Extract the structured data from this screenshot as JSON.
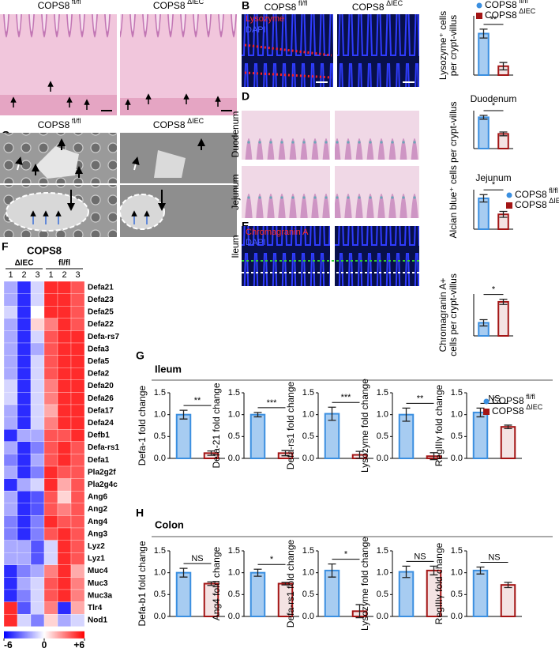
{
  "panel_labels": [
    "A",
    "B",
    "C",
    "D",
    "E",
    "F",
    "G",
    "H"
  ],
  "images": {
    "A": {
      "labels": [
        "COPS8 fl/fl",
        "COPS8 ΔIEC"
      ]
    },
    "B": {
      "labels": [
        "COPS8 fl/fl",
        "COPS8 ΔIEC"
      ],
      "stains": [
        "Lysozyme",
        "DAPI"
      ]
    },
    "C": {
      "labels": [
        "COPS8 fl/fl",
        "COPS8 ΔIEC"
      ]
    },
    "D": {
      "rows": [
        "Duodenum",
        "Jejunum"
      ]
    },
    "E": {
      "row": "Ileum",
      "stains": [
        "Chromagranin A",
        "DAPI"
      ]
    }
  },
  "sections": {
    "G": "Ileum",
    "H": "Colon"
  },
  "chart_data": [
    {
      "type": "bar",
      "y_label": [
        "Lysozyme⁺ cells",
        "per crypt-villus"
      ],
      "ylim": [
        0,
        8
      ],
      "significance": "**",
      "legend": "upper right",
      "series": [
        {
          "name": "COPS8 fl/fl",
          "color": "#3b8fe0",
          "values": [
            5.6
          ],
          "errors": [
            0.6
          ]
        },
        {
          "name": "COPS8 ΔIEC",
          "color": "#a31515",
          "values": [
            1.2
          ],
          "errors": [
            0.5
          ]
        }
      ]
    },
    {
      "type": "bar",
      "title": "Duodenum",
      "y_label": [
        "Alcian blue⁺ cells per crypt-villus"
      ],
      "ylim": [
        0,
        16
      ],
      "significance": "*",
      "series": [
        {
          "color": "#3b8fe0",
          "values": [
            13.2
          ],
          "errors": [
            0.8
          ]
        },
        {
          "color": "#a31515",
          "values": [
            6.2
          ],
          "errors": [
            0.8
          ]
        }
      ]
    },
    {
      "type": "bar",
      "title": "Jejunum",
      "ylim": [
        0,
        16
      ],
      "significance": "*",
      "legend": "upper right",
      "series": [
        {
          "name": "COPS8 fl/fl",
          "color": "#3b8fe0",
          "values": [
            12.5
          ],
          "errors": [
            1.5
          ]
        },
        {
          "name": "COPS8 ΔIEC",
          "color": "#a31515",
          "values": [
            6.0
          ],
          "errors": [
            1.2
          ]
        }
      ]
    },
    {
      "type": "bar",
      "y_label": [
        "Chromagranin A+",
        "cells per crypt-villus"
      ],
      "ylim": [
        0,
        1.6
      ],
      "significance": "*",
      "series": [
        {
          "color": "#3b8fe0",
          "values": [
            0.5
          ],
          "errors": [
            0.12
          ]
        },
        {
          "color": "#a31515",
          "values": [
            1.3
          ],
          "errors": [
            0.1
          ]
        }
      ]
    },
    {
      "type": "heatmap",
      "title": "COPS8",
      "groups": [
        "ΔIEC",
        "fl/fl"
      ],
      "columns": [
        "1",
        "2",
        "3",
        "1",
        "2",
        "3"
      ],
      "rows": [
        "Defa21",
        "Defa23",
        "Defa25",
        "Defa22",
        "Defa-rs7",
        "Defa3",
        "Defa5",
        "Defa2",
        "Defa20",
        "Defa26",
        "Defa17",
        "Defa24",
        "Defb1",
        "Defa-rs1",
        "Defa1",
        "Pla2g2f",
        "Pla2g4c",
        "Ang6",
        "Ang2",
        "Ang4",
        "Ang3",
        "Lyz2",
        "Lyz1",
        "Muc4",
        "Muc3",
        "Muc3a",
        "Tlr4",
        "Nod1"
      ],
      "values": [
        [
          -2,
          -5,
          -1,
          5,
          5,
          4
        ],
        [
          -2,
          -5,
          -1,
          5,
          5,
          4
        ],
        [
          -1,
          -5,
          0,
          5,
          5,
          4
        ],
        [
          -2,
          -5,
          1,
          3,
          5,
          4
        ],
        [
          -2,
          -5,
          -1,
          4,
          5,
          5
        ],
        [
          -2,
          -5,
          -2,
          4,
          5,
          5
        ],
        [
          -2,
          -5,
          -1,
          4,
          5,
          5
        ],
        [
          -2,
          -5,
          -1,
          4,
          5,
          5
        ],
        [
          -1,
          -5,
          -1,
          3,
          5,
          5
        ],
        [
          -1,
          -5,
          -1,
          3,
          5,
          5
        ],
        [
          -2,
          -5,
          -1,
          2,
          5,
          5
        ],
        [
          -2,
          -5,
          -1,
          3,
          5,
          5
        ],
        [
          -5,
          -2,
          -2,
          4,
          4,
          5
        ],
        [
          -2,
          -5,
          -3,
          4,
          5,
          4
        ],
        [
          -3,
          -5,
          -2,
          4,
          5,
          4
        ],
        [
          -2,
          -5,
          -3,
          5,
          4,
          4
        ],
        [
          -5,
          -2,
          -1,
          5,
          2,
          4
        ],
        [
          -2,
          -5,
          -4,
          4,
          1,
          4
        ],
        [
          -2,
          -5,
          -4,
          4,
          3,
          4
        ],
        [
          -3,
          -5,
          -3,
          5,
          4,
          4
        ],
        [
          -3,
          -5,
          -3,
          4,
          5,
          4
        ],
        [
          -2,
          -2,
          -4,
          -1,
          5,
          4
        ],
        [
          -2,
          -2,
          -4,
          -1,
          5,
          4
        ],
        [
          -5,
          -3,
          -2,
          3,
          5,
          2
        ],
        [
          -5,
          -2,
          -1,
          4,
          5,
          3
        ],
        [
          -5,
          -3,
          -1,
          4,
          5,
          3
        ],
        [
          5,
          -4,
          -1,
          3,
          -5,
          2
        ],
        [
          5,
          -1,
          -3,
          1,
          -2,
          -1
        ]
      ],
      "clim": [
        -6,
        6
      ],
      "cticks": [
        -6,
        0,
        {
          "value": 6,
          "label": "+6"
        }
      ],
      "colors": [
        "#0000ff",
        "#ffffff",
        "#ff0000"
      ]
    },
    {
      "type": "bar",
      "y_label": "Defa-1 fold change",
      "ylim": [
        0,
        1.5
      ],
      "yticks": [
        {
          "value": 0,
          "label": "0.0"
        },
        0.5,
        {
          "value": 1,
          "label": "1.0"
        },
        1.5
      ],
      "significance": "**",
      "series": [
        {
          "color": "#3b8fe0",
          "values": [
            1.0
          ],
          "errors": [
            0.1
          ]
        },
        {
          "color": "#a31515",
          "values": [
            0.12
          ],
          "errors": [
            0.05
          ]
        }
      ]
    },
    {
      "type": "bar",
      "y_label": "Defa-21 fold change",
      "ylim": [
        0,
        1.5
      ],
      "yticks": [
        {
          "value": 0,
          "label": "0.0"
        },
        0.5,
        {
          "value": 1,
          "label": "1.0"
        },
        1.5
      ],
      "significance": "***",
      "series": [
        {
          "color": "#3b8fe0",
          "values": [
            1.0
          ],
          "errors": [
            0.05
          ]
        },
        {
          "color": "#a31515",
          "values": [
            0.12
          ],
          "errors": [
            0.06
          ]
        }
      ]
    },
    {
      "type": "bar",
      "y_label": "Defa-rs1 fold change",
      "ylim": [
        0,
        1.5
      ],
      "yticks": [
        {
          "value": 0,
          "label": "0.0"
        },
        0.5,
        {
          "value": 1,
          "label": "1.0"
        },
        1.5
      ],
      "significance": "***",
      "series": [
        {
          "color": "#3b8fe0",
          "values": [
            1.02
          ],
          "errors": [
            0.15
          ]
        },
        {
          "color": "#a31515",
          "values": [
            0.08
          ],
          "errors": [
            0.08
          ]
        }
      ]
    },
    {
      "type": "bar",
      "y_label": "Lysozyme fold change",
      "ylim": [
        0,
        1.5
      ],
      "yticks": [
        {
          "value": 0,
          "label": "0.0"
        },
        0.5,
        {
          "value": 1,
          "label": "1.0"
        },
        1.5
      ],
      "significance": "**",
      "series": [
        {
          "color": "#3b8fe0",
          "values": [
            1.0
          ],
          "errors": [
            0.15
          ]
        },
        {
          "color": "#a31515",
          "values": [
            0.05
          ],
          "errors": [
            0.08
          ]
        }
      ]
    },
    {
      "type": "bar",
      "y_label": "RegIIIγ fold change",
      "ylim": [
        0,
        1.5
      ],
      "yticks": [
        {
          "value": 0,
          "label": "0.0"
        },
        0.5,
        {
          "value": 1,
          "label": "1.0"
        },
        1.5
      ],
      "significance": "NS",
      "legend": "upper right",
      "series": [
        {
          "name": "COPS8 fl/fl",
          "color": "#3b8fe0",
          "values": [
            1.05
          ],
          "errors": [
            0.1
          ]
        },
        {
          "name": "COPS8 ΔIEC",
          "color": "#a31515",
          "values": [
            0.72
          ],
          "errors": [
            0.04
          ]
        }
      ]
    },
    {
      "type": "bar",
      "y_label": "Defa-b1 fold change",
      "ylim": [
        0,
        1.5
      ],
      "yticks": [
        {
          "value": 0,
          "label": "0.0"
        },
        0.5,
        {
          "value": 1,
          "label": "1.0"
        },
        1.5
      ],
      "significance": "NS",
      "series": [
        {
          "color": "#3b8fe0",
          "values": [
            1.0
          ],
          "errors": [
            0.1
          ]
        },
        {
          "color": "#a31515",
          "values": [
            0.75
          ],
          "errors": [
            0.04
          ]
        }
      ]
    },
    {
      "type": "bar",
      "y_label": "Ang4 fold change",
      "ylim": [
        0,
        1.5
      ],
      "yticks": [
        {
          "value": 0,
          "label": "0.0"
        },
        0.5,
        {
          "value": 1,
          "label": "1.0"
        },
        1.5
      ],
      "significance": "*",
      "series": [
        {
          "color": "#3b8fe0",
          "values": [
            1.0
          ],
          "errors": [
            0.08
          ]
        },
        {
          "color": "#a31515",
          "values": [
            0.75
          ],
          "errors": [
            0.03
          ]
        }
      ]
    },
    {
      "type": "bar",
      "y_label": "Defa-rs1 fold change",
      "ylim": [
        0,
        1.5
      ],
      "yticks": [
        {
          "value": 0,
          "label": "0.0"
        },
        0.5,
        {
          "value": 1,
          "label": "1.0"
        },
        1.5
      ],
      "significance": "*",
      "series": [
        {
          "color": "#3b8fe0",
          "values": [
            1.05
          ],
          "errors": [
            0.15
          ]
        },
        {
          "color": "#a31515",
          "values": [
            0.12
          ],
          "errors": [
            0.15
          ]
        }
      ]
    },
    {
      "type": "bar",
      "y_label": "Lysozyme fold change",
      "ylim": [
        0,
        1.5
      ],
      "yticks": [
        {
          "value": 0,
          "label": "0.0"
        },
        0.5,
        {
          "value": 1,
          "label": "1.0"
        },
        1.5
      ],
      "significance": "NS",
      "series": [
        {
          "color": "#3b8fe0",
          "values": [
            1.02
          ],
          "errors": [
            0.13
          ]
        },
        {
          "color": "#a31515",
          "values": [
            1.05
          ],
          "errors": [
            0.1
          ]
        }
      ]
    },
    {
      "type": "bar",
      "y_label": "RegIIIγ fold change",
      "ylim": [
        0,
        1.5
      ],
      "yticks": [
        {
          "value": 0,
          "label": "0.0"
        },
        0.5,
        {
          "value": 1,
          "label": "1.0"
        },
        1.5
      ],
      "significance": "NS",
      "series": [
        {
          "color": "#3b8fe0",
          "values": [
            1.05
          ],
          "errors": [
            0.08
          ]
        },
        {
          "color": "#a31515",
          "values": [
            0.72
          ],
          "errors": [
            0.06
          ]
        }
      ]
    }
  ]
}
